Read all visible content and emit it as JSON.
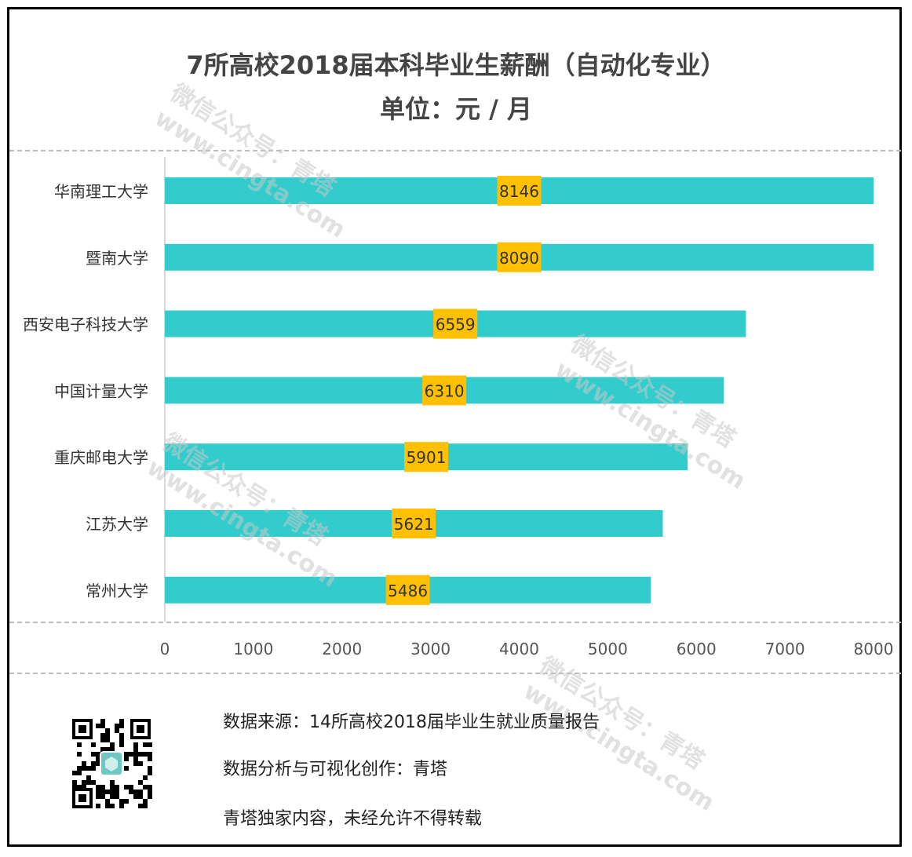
{
  "title": "7所高校2018届本科毕业生薪酬（自动化专业）",
  "subtitle": "单位：元 / 月",
  "chart_data": {
    "type": "bar",
    "orientation": "horizontal",
    "categories": [
      "华南理工大学",
      "暨南大学",
      "西安电子科技大学",
      "中国计量大学",
      "重庆邮电大学",
      "江苏大学",
      "常州大学"
    ],
    "values": [
      8146,
      8090,
      6559,
      6310,
      5901,
      5621,
      5486
    ],
    "xlim": [
      0,
      8000
    ],
    "xticks": [
      0,
      1000,
      2000,
      3000,
      4000,
      5000,
      6000,
      7000,
      8000
    ],
    "bar_color": "#33CCCC",
    "label_color": "#FFC000",
    "grid": false
  },
  "footer": {
    "source": "数据来源：14所高校2018届毕业生就业质量报告",
    "analysis": "数据分析与可视化创作：青塔",
    "copyright": "青塔独家内容，未经允许不得转载"
  },
  "watermark": {
    "line1": "微信公众号：青塔",
    "line2": "www.cingta.com"
  },
  "icons": {
    "qr": "qr-code-icon"
  }
}
